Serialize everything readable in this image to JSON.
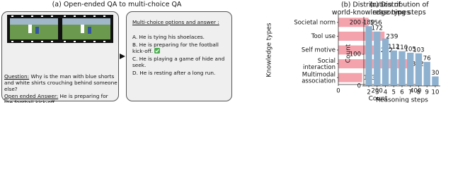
{
  "panel_a": {
    "title": "(a) Open-ended QA to multi-choice QA",
    "question_label": "Question:",
    "question": "Why is the man with blue shorts and white shirts crouching behind someone else?",
    "answer_label": "Open ended Answer:",
    "answer": "He is preparing for the football kick-off.",
    "options_heading": "Multi-choice options and answer :",
    "options": [
      "A. He is tying his shoelaces.",
      "B. He is preparing for the football kick-off.",
      "C. He is playing a game of hide and seek.",
      "D. He is resting after a long run."
    ]
  },
  "chart_data": [
    {
      "type": "hbar",
      "title": "(b) Distribution of\nworld-knowledge types",
      "xlabel": "Count",
      "ylabel": "Knowledge types",
      "categories": [
        "Societal norm",
        "Tool use",
        "Self motive",
        "Social\ninteraction",
        "Multimodal\nassociation"
      ],
      "values": [
        156,
        239,
        212,
        372,
        123
      ],
      "color": "#f4a3ad",
      "xlim": [
        0,
        410
      ],
      "xticks": [
        0,
        200,
        400
      ]
    },
    {
      "type": "bar",
      "title": "(c) Distribution of\nreasoning steps",
      "xlabel": "Reasoning steps",
      "ylabel": "Count",
      "x": [
        2,
        3,
        4,
        5,
        6,
        7,
        8,
        9,
        10
      ],
      "values": [
        189,
        172,
        150,
        112,
        110,
        105,
        103,
        76,
        30
      ],
      "value_labels": [
        "189",
        "172",
        null,
        "112",
        "110",
        "105",
        "103",
        "76",
        "30"
      ],
      "color": "#8fb1d0",
      "xlim": [
        1.4,
        10.6
      ],
      "xticks": [
        2,
        3,
        4,
        5,
        6,
        7,
        8,
        9,
        10
      ],
      "ylim": [
        0,
        205
      ],
      "yticks": [
        0,
        100,
        200
      ]
    }
  ]
}
